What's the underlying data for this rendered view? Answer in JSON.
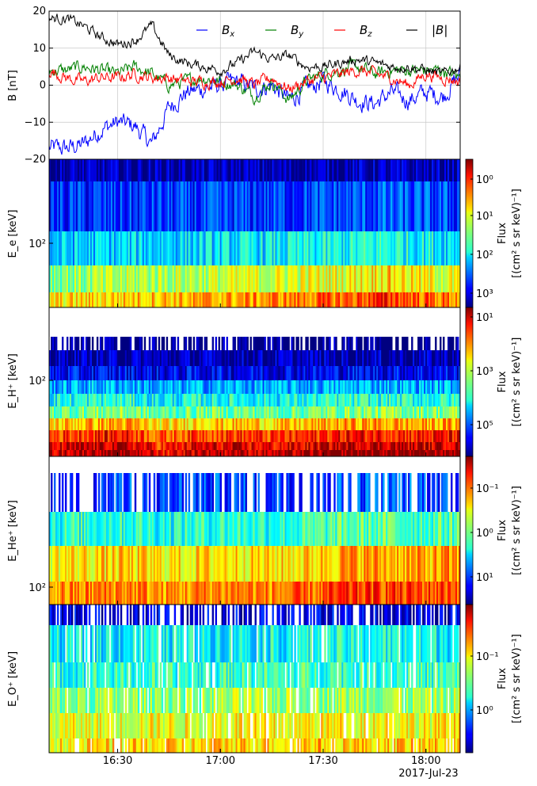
{
  "chart_data": [
    {
      "type": "line",
      "panel": "magnetic-field",
      "ylabel": "B [nT]",
      "ylim": [
        -20,
        20
      ],
      "yticks": [
        "20",
        "10",
        "0",
        "−10",
        "−20"
      ],
      "x_range": [
        "16:10",
        "18:10"
      ],
      "grid": true,
      "legend": "top",
      "series": [
        {
          "name": "B_x",
          "color": "#0000ff",
          "x": [
            "16:10",
            "16:15",
            "16:20",
            "16:25",
            "16:30",
            "16:35",
            "16:40",
            "16:45",
            "16:50",
            "16:55",
            "17:00",
            "17:05",
            "17:10",
            "17:15",
            "17:20",
            "17:25",
            "17:30",
            "17:35",
            "17:40",
            "17:45",
            "17:50",
            "17:55",
            "18:00",
            "18:05",
            "18:10"
          ],
          "values": [
            -17,
            -17,
            -16,
            -12,
            -10,
            -11,
            -16,
            -6,
            -2,
            -1,
            0,
            1,
            -1,
            0,
            -4,
            -1,
            1,
            -1,
            -4,
            -5,
            -2,
            -4,
            -2,
            -3,
            3
          ]
        },
        {
          "name": "B_y",
          "color": "#008000",
          "x": [
            "16:10",
            "16:15",
            "16:20",
            "16:25",
            "16:30",
            "16:35",
            "16:40",
            "16:45",
            "16:50",
            "16:55",
            "17:00",
            "17:05",
            "17:10",
            "17:15",
            "17:20",
            "17:25",
            "17:30",
            "17:35",
            "17:40",
            "17:45",
            "17:50",
            "17:55",
            "18:00",
            "18:05",
            "18:10"
          ],
          "values": [
            4,
            4,
            5,
            4,
            3,
            5,
            3,
            0,
            1,
            2,
            1,
            0,
            -3,
            1,
            -4,
            1,
            3,
            4,
            5,
            3,
            4,
            4,
            4,
            4,
            2
          ]
        },
        {
          "name": "B_z",
          "color": "#ff0000",
          "x": [
            "16:10",
            "16:15",
            "16:20",
            "16:25",
            "16:30",
            "16:35",
            "16:40",
            "16:45",
            "16:50",
            "16:55",
            "17:00",
            "17:05",
            "17:10",
            "17:15",
            "17:20",
            "17:25",
            "17:30",
            "17:35",
            "17:40",
            "17:45",
            "17:50",
            "17:55",
            "18:00",
            "18:05",
            "18:10"
          ],
          "values": [
            4,
            2,
            1,
            2,
            2,
            3,
            2,
            2,
            1,
            1,
            1,
            2,
            0,
            2,
            -1,
            1,
            2,
            3,
            4,
            3,
            2,
            0,
            3,
            2,
            1
          ]
        },
        {
          "name": "|B|",
          "color": "#000000",
          "x": [
            "16:10",
            "16:15",
            "16:20",
            "16:25",
            "16:30",
            "16:35",
            "16:40",
            "16:45",
            "16:50",
            "16:55",
            "17:00",
            "17:05",
            "17:10",
            "17:15",
            "17:20",
            "17:25",
            "17:30",
            "17:35",
            "17:40",
            "17:45",
            "17:50",
            "17:55",
            "18:00",
            "18:05",
            "18:10"
          ],
          "values": [
            18,
            18,
            16,
            13,
            11,
            12,
            16,
            8,
            6,
            5,
            4,
            6,
            9,
            7,
            8,
            5,
            5,
            6,
            7,
            6,
            5,
            5,
            4,
            3,
            5
          ]
        }
      ]
    },
    {
      "type": "heatmap",
      "panel": "electrons",
      "ylabel": "E_e [keV]",
      "yscale": "log",
      "ytick_labels": [
        "10²"
      ],
      "colorbar": {
        "label": "Flux",
        "units": "[(cm² s sr keV)⁻¹]",
        "scale": "log",
        "tick_labels": [
          "10⁰",
          "10¹",
          "10²",
          "10³"
        ],
        "range": [
          0.5,
          4000
        ]
      },
      "energy_bands": 6,
      "band_mean_levels": [
        0.05,
        0.2,
        0.4,
        0.65,
        0.82,
        0.95
      ],
      "time_profile": [
        0.45,
        0.5,
        0.55,
        0.6,
        0.6,
        0.65,
        0.7,
        0.75,
        0.8,
        0.95,
        0.8,
        0.7
      ]
    },
    {
      "type": "heatmap",
      "panel": "H+",
      "ylabel": "E_H⁺ [keV]",
      "yscale": "log",
      "ytick_labels": [
        "10²"
      ],
      "colorbar": {
        "label": "Flux",
        "units": "[(cm² s sr keV)⁻¹]",
        "scale": "log",
        "tick_labels": [
          "10¹",
          "10³",
          "10⁵"
        ],
        "range": [
          1,
          150000
        ]
      },
      "energy_bands": 10,
      "band_mean_levels": [
        0.0,
        0.05,
        0.12,
        0.3,
        0.4,
        0.5,
        0.7,
        0.85,
        0.92,
        0.97
      ],
      "time_profile": [
        0.8,
        0.9,
        0.95,
        0.7,
        0.85,
        0.85,
        0.8,
        0.85,
        0.95,
        0.95,
        0.9,
        0.95
      ]
    },
    {
      "type": "heatmap",
      "panel": "He+",
      "ylabel": "E_He⁺ [keV]",
      "yscale": "log",
      "ytick_labels": [
        "10²"
      ],
      "colorbar": {
        "label": "Flux",
        "units": "[(cm² s sr keV)⁻¹]",
        "scale": "log",
        "tick_labels": [
          "10⁻¹",
          "10⁰",
          "10¹"
        ],
        "range": [
          0.03,
          50
        ]
      },
      "energy_bands": 4,
      "band_mean_levels": [
        0.2,
        0.45,
        0.7,
        0.8
      ],
      "time_profile": [
        0.7,
        0.75,
        0.8,
        0.7,
        0.75,
        0.8,
        0.75,
        0.8,
        0.95,
        0.95,
        0.9,
        0.95
      ]
    },
    {
      "type": "heatmap",
      "panel": "O+",
      "ylabel": "E_O⁺ [keV]",
      "yscale": "log",
      "colorbar": {
        "label": "Flux",
        "units": "[(cm² s sr keV)⁻¹]",
        "scale": "log",
        "tick_labels": [
          "10⁻¹",
          "10⁰"
        ],
        "range": [
          0.02,
          5
        ]
      },
      "energy_bands": 6,
      "band_mean_levels": [
        0.1,
        0.4,
        0.45,
        0.55,
        0.65,
        0.7
      ],
      "time_profile": [
        0.7,
        0.75,
        0.75,
        0.8,
        0.75,
        0.85,
        0.8,
        0.85,
        0.85,
        0.85,
        0.8,
        0.85
      ]
    }
  ],
  "x_axis": {
    "ticks": [
      "16:30",
      "17:00",
      "17:30",
      "18:00"
    ],
    "tick_minutes": [
      30,
      60,
      90,
      120
    ],
    "range_minutes": [
      10,
      130
    ],
    "date_label": "2017-Jul-23"
  }
}
